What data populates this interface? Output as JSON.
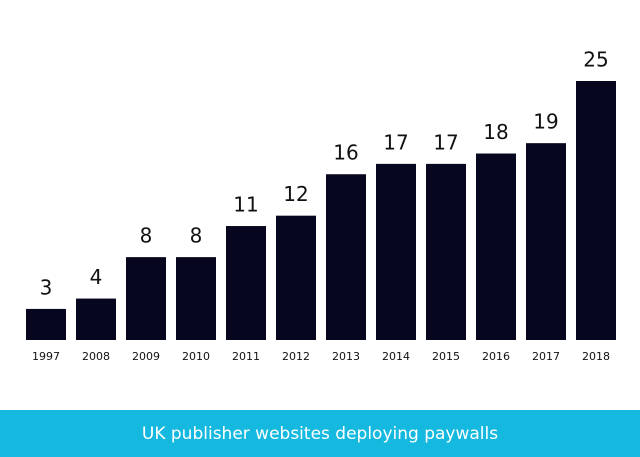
{
  "chart_data": {
    "type": "bar",
    "title": "UK publisher websites deploying paywalls",
    "categories": [
      "1997",
      "2008",
      "2009",
      "2010",
      "2011",
      "2012",
      "2013",
      "2014",
      "2015",
      "2016",
      "2017",
      "2018"
    ],
    "values": [
      3,
      4,
      8,
      8,
      11,
      12,
      16,
      17,
      17,
      18,
      19,
      25
    ],
    "color": "#06061f"
  }
}
